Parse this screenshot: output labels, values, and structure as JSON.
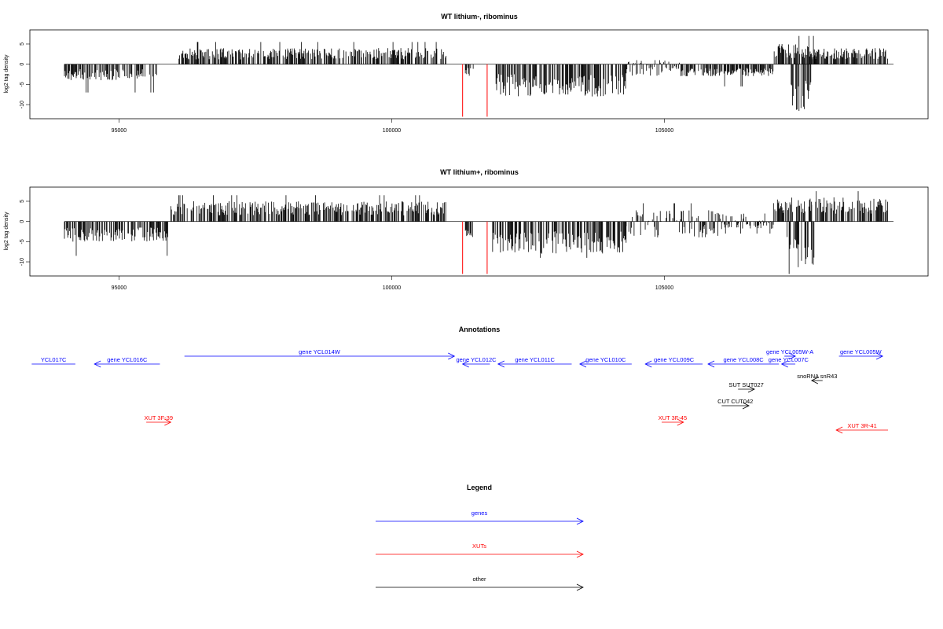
{
  "chart_data": [
    {
      "type": "bar",
      "title": "WT lithium-, ribominus",
      "ylabel": "log2 tag density",
      "xlim": [
        94000,
        109200
      ],
      "ylim": [
        -13.5,
        8.5
      ],
      "x_ticks": [
        "95000",
        "100000",
        "105000"
      ],
      "y_ticks": [
        "5",
        "0",
        "-5",
        "-10"
      ],
      "segments": [
        {
          "from": 94000,
          "to": 95700,
          "min": -4,
          "max": 0,
          "peak": -7
        },
        {
          "from": 96100,
          "to": 101000,
          "min": 0,
          "max": 4,
          "peak": 5.5
        },
        {
          "from": 101350,
          "to": 101500,
          "min": -3,
          "max": 0,
          "peak": -3
        },
        {
          "from": 101900,
          "to": 104300,
          "min": -8,
          "max": 0,
          "peak": -7.5
        },
        {
          "from": 104300,
          "to": 105300,
          "min": -3,
          "max": 1,
          "peak": 1
        },
        {
          "from": 105300,
          "to": 107000,
          "min": -3,
          "max": 0,
          "peak": -5.5
        },
        {
          "from": 107000,
          "to": 107800,
          "min": 0,
          "max": 5,
          "peak": 7
        },
        {
          "from": 107300,
          "to": 107700,
          "min": -12,
          "max": 0,
          "peak": -12
        },
        {
          "from": 107700,
          "to": 109100,
          "min": 0,
          "max": 4,
          "peak": 5
        }
      ],
      "highlight_bars": [
        {
          "x": 101300,
          "value": -13,
          "color": "#ff0000"
        },
        {
          "x": 101750,
          "value": -13,
          "color": "#ff0000"
        }
      ]
    },
    {
      "type": "bar",
      "title": "WT lithium+, ribominus",
      "ylabel": "log2 tag density",
      "xlim": [
        94000,
        109200
      ],
      "ylim": [
        -13.5,
        8.5
      ],
      "x_ticks": [
        "95000",
        "100000",
        "105000"
      ],
      "y_ticks": [
        "5",
        "0",
        "-5",
        "-10"
      ],
      "segments": [
        {
          "from": 94000,
          "to": 95900,
          "min": -5,
          "max": 0,
          "peak": -8.5
        },
        {
          "from": 95950,
          "to": 101000,
          "min": 0,
          "max": 5,
          "peak": 6.5
        },
        {
          "from": 101350,
          "to": 101500,
          "min": -4,
          "max": 0,
          "peak": -4
        },
        {
          "from": 101850,
          "to": 104300,
          "min": -8,
          "max": 0,
          "peak": -9
        },
        {
          "from": 104300,
          "to": 106000,
          "min": -4,
          "max": 3,
          "peak": 4.5
        },
        {
          "from": 106000,
          "to": 107000,
          "min": -2,
          "max": 2,
          "peak": -3
        },
        {
          "from": 107000,
          "to": 107700,
          "min": 0,
          "max": 6,
          "peak": 7
        },
        {
          "from": 107250,
          "to": 107750,
          "min": -12,
          "max": 0,
          "peak": -13
        },
        {
          "from": 107700,
          "to": 109100,
          "min": 0,
          "max": 6,
          "peak": 7.5
        }
      ],
      "highlight_bars": [
        {
          "x": 101300,
          "value": -13,
          "color": "#ff0000"
        },
        {
          "x": 101750,
          "value": -13,
          "color": "#ff0000"
        }
      ]
    }
  ],
  "annotations": {
    "title": "Annotations",
    "items": [
      {
        "label": "YCL017C",
        "from": 93400,
        "to": 94200,
        "dir": "none",
        "row": 0,
        "color": "#0000ff"
      },
      {
        "label": "gene YCL016C",
        "from": 94550,
        "to": 95750,
        "dir": "left",
        "row": 0,
        "color": "#0000ff"
      },
      {
        "label": "gene YCL014W",
        "from": 96200,
        "to": 101150,
        "dir": "right",
        "row": -1,
        "color": "#0000ff"
      },
      {
        "label": "gene YCL012C",
        "from": 101300,
        "to": 101800,
        "dir": "left",
        "row": 0,
        "color": "#0000ff"
      },
      {
        "label": "gene YCL011C",
        "from": 101950,
        "to": 103300,
        "dir": "left",
        "row": 0,
        "color": "#0000ff"
      },
      {
        "label": "gene YCL010C",
        "from": 103450,
        "to": 104400,
        "dir": "left",
        "row": 0,
        "color": "#0000ff"
      },
      {
        "label": "gene YCL009C",
        "from": 104650,
        "to": 105700,
        "dir": "left",
        "row": 0,
        "color": "#0000ff"
      },
      {
        "label": "gene YCL008C",
        "from": 105800,
        "to": 107100,
        "dir": "left",
        "row": 0,
        "color": "#0000ff"
      },
      {
        "label": "gene YCL005W-A",
        "from": 107200,
        "to": 107400,
        "dir": "right",
        "row": -1,
        "color": "#0000ff"
      },
      {
        "label": "gene YCL007C",
        "from": 107150,
        "to": 107400,
        "dir": "left",
        "row": 0,
        "color": "#0000ff"
      },
      {
        "label": "gene YCL005W",
        "from": 108200,
        "to": 109000,
        "dir": "right",
        "row": -1,
        "color": "#0000ff"
      },
      {
        "label": "snoRNA snR43",
        "from": 107700,
        "to": 107900,
        "dir": "left",
        "row": 1,
        "color": "#000000"
      },
      {
        "label": "SUT SUT027",
        "from": 106350,
        "to": 106650,
        "dir": "right",
        "row": 2,
        "color": "#000000"
      },
      {
        "label": "CUT CUT042",
        "from": 106050,
        "to": 106550,
        "dir": "right",
        "row": 3,
        "color": "#000000"
      },
      {
        "label": "XUT 3F-39",
        "from": 95500,
        "to": 95950,
        "dir": "right",
        "row": 4,
        "color": "#ff0000"
      },
      {
        "label": "XUT 3F-45",
        "from": 104950,
        "to": 105350,
        "dir": "right",
        "row": 4,
        "color": "#ff0000"
      },
      {
        "label": "XUT 3R-41",
        "from": 108150,
        "to": 109100,
        "dir": "left",
        "row": 5,
        "color": "#ff0000"
      }
    ]
  },
  "legend": {
    "title": "Legend",
    "items": [
      {
        "label": "genes",
        "color": "#0000ff"
      },
      {
        "label": "XUTs",
        "color": "#ff0000"
      },
      {
        "label": "other",
        "color": "#000000"
      }
    ]
  }
}
